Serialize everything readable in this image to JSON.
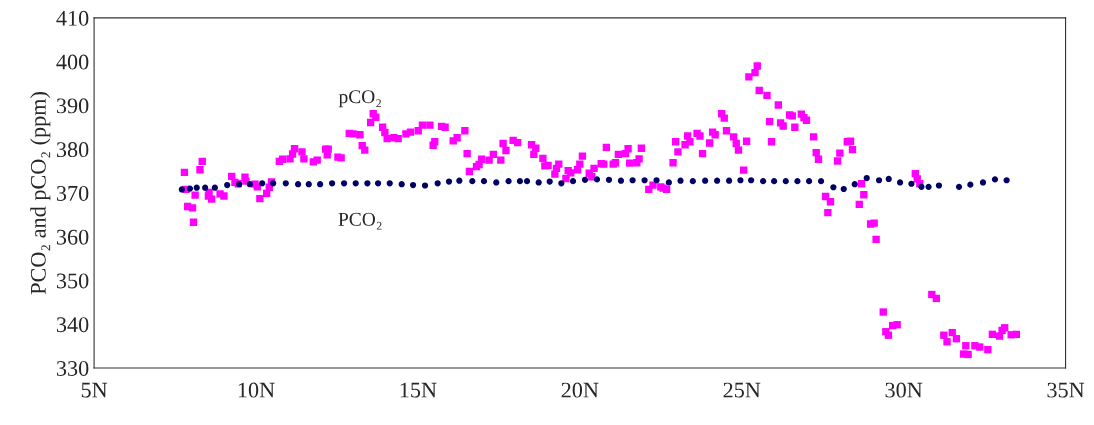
{
  "chart_data": {
    "type": "scatter",
    "ylabel": "PCO₂ and pCO₂ (ppm)",
    "xlim": [
      5,
      35
    ],
    "ylim": [
      330,
      410
    ],
    "xticks": [
      {
        "value": 5,
        "label": "5N"
      },
      {
        "value": 10,
        "label": "10N"
      },
      {
        "value": 15,
        "label": "15N"
      },
      {
        "value": 20,
        "label": "20N"
      },
      {
        "value": 25,
        "label": "25N"
      },
      {
        "value": 30,
        "label": "30N"
      },
      {
        "value": 35,
        "label": "35N"
      }
    ],
    "yticks": [
      330,
      340,
      350,
      360,
      370,
      380,
      390,
      400,
      410
    ],
    "grid": false,
    "legend": false,
    "series": [
      {
        "name": "PCO₂",
        "color": "#000066",
        "marker": "circle",
        "x": [
          7.71,
          7.96,
          8.17,
          8.43,
          8.73,
          9.11,
          9.48,
          9.81,
          10.19,
          10.53,
          10.92,
          11.3,
          11.63,
          11.98,
          12.35,
          12.72,
          13.08,
          13.44,
          13.77,
          14.13,
          14.5,
          14.85,
          15.22,
          15.61,
          15.96,
          16.28,
          16.68,
          17.04,
          17.42,
          17.8,
          18.15,
          18.37,
          18.73,
          19.07,
          19.43,
          19.79,
          20.16,
          20.53,
          20.9,
          21.27,
          21.63,
          22.0,
          22.37,
          22.75,
          23.11,
          23.49,
          23.87,
          24.24,
          24.61,
          24.96,
          25.29,
          25.66,
          26.0,
          26.36,
          26.72,
          27.08,
          27.45,
          27.83,
          28.15,
          28.49,
          28.86,
          29.24,
          29.54,
          29.89,
          30.24,
          30.55,
          30.77,
          31.09,
          31.71,
          32.06,
          32.45,
          32.82,
          33.18
        ],
        "values": [
          370.8,
          371.0,
          371.2,
          371.2,
          371.2,
          371.8,
          372.0,
          372.0,
          372.2,
          372.2,
          372.2,
          372.0,
          372.0,
          372.0,
          372.2,
          372.2,
          372.2,
          372.2,
          372.2,
          372.2,
          372.0,
          371.8,
          371.7,
          372.2,
          372.6,
          372.8,
          372.7,
          372.7,
          372.4,
          372.7,
          372.7,
          372.7,
          372.4,
          372.6,
          372.2,
          372.7,
          373.0,
          373.1,
          373.0,
          372.8,
          372.9,
          372.9,
          372.9,
          372.4,
          372.8,
          372.7,
          372.8,
          372.8,
          372.8,
          372.9,
          372.9,
          372.7,
          372.7,
          372.7,
          372.7,
          372.7,
          372.7,
          371.3,
          370.9,
          372.0,
          373.4,
          372.9,
          373.2,
          372.4,
          372.1,
          371.4,
          371.4,
          371.7,
          371.4,
          371.9,
          372.4,
          373.1,
          372.9
        ]
      },
      {
        "name": "pCO₂",
        "color": "#ff00ff",
        "marker": "square",
        "x": [
          7.79,
          7.84,
          7.89,
          8.04,
          8.07,
          8.12,
          8.27,
          8.34,
          8.53,
          8.55,
          8.63,
          8.89,
          9.01,
          9.25,
          9.35,
          9.45,
          9.66,
          9.69,
          9.97,
          10.04,
          10.12,
          10.33,
          10.41,
          10.48,
          10.72,
          10.82,
          11.05,
          11.13,
          11.19,
          11.42,
          11.48,
          11.77,
          11.89,
          12.15,
          12.2,
          12.23,
          12.53,
          12.63,
          12.88,
          13.0,
          13.21,
          13.28,
          13.36,
          13.54,
          13.62,
          13.7,
          13.91,
          13.98,
          14.05,
          14.26,
          14.39,
          14.63,
          14.77,
          15.01,
          15.14,
          15.37,
          15.47,
          15.52,
          15.73,
          15.84,
          16.09,
          16.21,
          16.45,
          16.52,
          16.59,
          16.81,
          16.89,
          16.97,
          17.2,
          17.33,
          17.56,
          17.63,
          17.72,
          17.94,
          18.08,
          18.51,
          18.58,
          18.64,
          18.86,
          18.92,
          19.02,
          19.23,
          19.28,
          19.35,
          19.57,
          19.64,
          19.72,
          19.93,
          20.0,
          20.08,
          20.29,
          20.37,
          20.44,
          20.66,
          20.74,
          20.82,
          21.03,
          21.1,
          21.19,
          21.41,
          21.49,
          21.54,
          21.76,
          21.83,
          21.9,
          22.13,
          22.26,
          22.5,
          22.57,
          22.68,
          22.88,
          22.96,
          23.03,
          23.25,
          23.33,
          23.4,
          23.62,
          23.71,
          23.79,
          24.01,
          24.1,
          24.18,
          24.38,
          24.46,
          24.53,
          24.75,
          24.83,
          24.9,
          25.06,
          25.15,
          25.22,
          25.41,
          25.48,
          25.54,
          25.78,
          25.86,
          25.92,
          26.13,
          26.2,
          26.28,
          26.48,
          26.56,
          26.64,
          26.84,
          26.92,
          27.0,
          27.22,
          27.3,
          27.37,
          27.59,
          27.66,
          27.74,
          27.96,
          28.03,
          28.26,
          28.36,
          28.42,
          28.63,
          28.7,
          28.77,
          28.98,
          29.09,
          29.15,
          29.37,
          29.45,
          29.53,
          29.66,
          29.8,
          30.36,
          30.42,
          30.5,
          30.87,
          31.01,
          31.24,
          31.34,
          31.5,
          31.63,
          31.85,
          31.92,
          31.99,
          32.2,
          32.35,
          32.6,
          32.74,
          32.96,
          33.04,
          33.12,
          33.32,
          33.48
        ],
        "values": [
          374.7,
          370.8,
          366.9,
          366.6,
          363.3,
          369.5,
          375.3,
          377.2,
          369.3,
          370.1,
          368.6,
          369.8,
          369.3,
          373.8,
          372.4,
          372.1,
          373.6,
          372.7,
          372.0,
          371.4,
          368.7,
          369.9,
          371.3,
          372.5,
          377.2,
          377.7,
          377.8,
          378.9,
          380.1,
          379.4,
          377.8,
          377.1,
          377.5,
          380.0,
          378.7,
          380.0,
          378.2,
          378.0,
          383.6,
          383.5,
          383.3,
          380.8,
          379.8,
          386.1,
          388.1,
          387.3,
          385.0,
          383.8,
          382.4,
          382.6,
          382.4,
          383.5,
          383.9,
          384.2,
          385.5,
          385.5,
          380.9,
          381.7,
          385.2,
          385.0,
          381.9,
          382.6,
          384.2,
          379.0,
          374.9,
          376.0,
          376.5,
          377.7,
          377.5,
          378.8,
          377.5,
          381.3,
          379.7,
          382.0,
          381.5,
          381.0,
          378.8,
          380.2,
          377.9,
          376.2,
          376.3,
          374.3,
          375.6,
          376.6,
          373.3,
          375.1,
          374.6,
          375.3,
          376.6,
          378.4,
          374.5,
          373.7,
          375.6,
          376.7,
          376.6,
          380.4,
          376.6,
          376.9,
          378.8,
          379.0,
          380.1,
          376.8,
          376.9,
          377.8,
          380.2,
          370.8,
          371.8,
          371.4,
          371.1,
          370.8,
          376.9,
          381.7,
          379.4,
          381.0,
          383.0,
          381.7,
          383.6,
          383.0,
          379.0,
          381.4,
          383.9,
          383.3,
          388.1,
          387.1,
          384.2,
          382.8,
          381.3,
          379.8,
          375.2,
          381.8,
          396.5,
          397.5,
          399.0,
          393.4,
          392.3,
          386.3,
          381.7,
          390.1,
          386.0,
          385.3,
          387.8,
          387.6,
          385.0,
          388.0,
          387.2,
          386.6,
          382.8,
          379.2,
          377.7,
          369.2,
          365.5,
          368.0,
          377.3,
          379.1,
          381.7,
          381.8,
          379.9,
          367.4,
          372.1,
          369.6,
          362.9,
          363.1,
          359.4,
          342.8,
          338.3,
          337.5,
          339.7,
          339.9,
          374.4,
          373.2,
          372.1,
          346.8,
          345.9,
          337.5,
          336.0,
          338.1,
          336.7,
          333.2,
          335.1,
          333.1,
          335.1,
          334.8,
          334.2,
          337.7,
          337.3,
          338.6,
          339.2,
          337.6,
          337.7
        ]
      }
    ]
  }
}
